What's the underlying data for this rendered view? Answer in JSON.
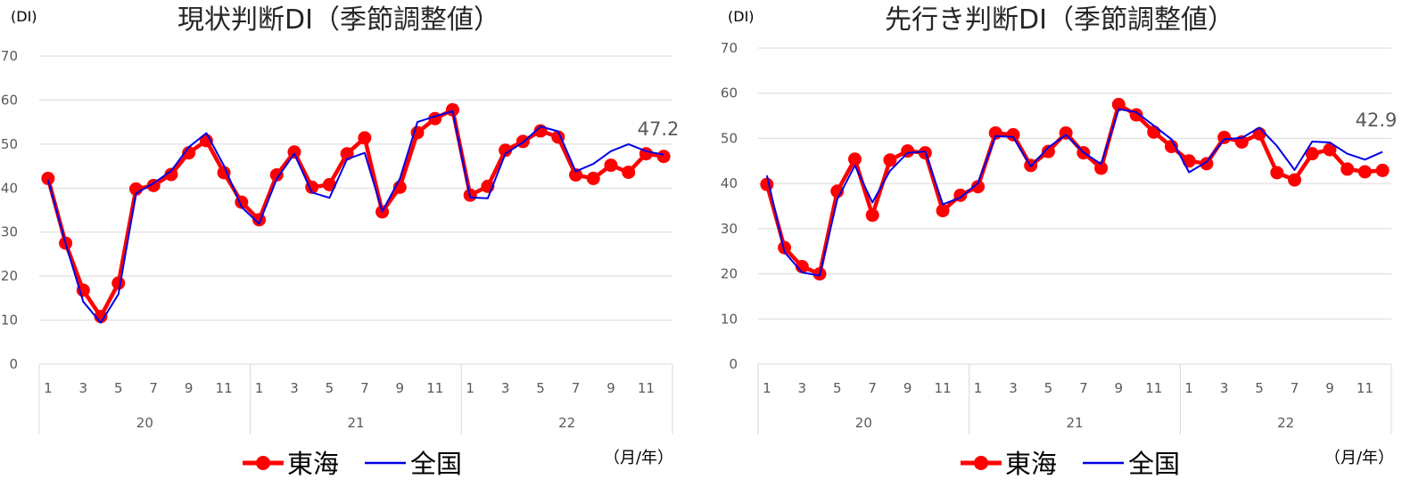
{
  "colors": {
    "tokai": "#ff0000",
    "national": "#0000e6",
    "grid": "#d9d9d9",
    "axis_text": "#595959",
    "title": "#262626"
  },
  "chart_data": [
    {
      "type": "line",
      "title": "現状判断DI（季節調整値）",
      "ylabel": "(DI)",
      "xlabel": "（月/年）",
      "ylim": [
        0,
        70
      ],
      "yticks": [
        "0",
        "10",
        "20",
        "30",
        "40",
        "50",
        "60",
        "70"
      ],
      "years": [
        "20",
        "21",
        "22"
      ],
      "month_ticks": [
        "1",
        "3",
        "5",
        "7",
        "9",
        "11"
      ],
      "end_label": "47.2",
      "grid": true,
      "legend_position": "bottom",
      "series": [
        {
          "name": "東海",
          "values": [
            42.2,
            27.5,
            16.8,
            10.8,
            18.4,
            39.8,
            40.6,
            43.1,
            48.0,
            50.8,
            43.5,
            36.8,
            32.8,
            43.0,
            48.2,
            40.2,
            40.8,
            47.8,
            51.4,
            34.6,
            40.2,
            52.6,
            55.8,
            57.8,
            38.4,
            40.4,
            48.6,
            50.6,
            53.0,
            51.6,
            43.0,
            42.2,
            45.2,
            43.6,
            47.8,
            47.2
          ]
        },
        {
          "name": "全国",
          "values": [
            41.9,
            27.4,
            14.2,
            9.4,
            15.9,
            38.8,
            41.1,
            43.9,
            49.3,
            52.5,
            45.1,
            35.7,
            31.9,
            42.1,
            47.8,
            39.0,
            37.8,
            46.6,
            48.0,
            34.7,
            42.1,
            55.0,
            56.3,
            57.5,
            37.9,
            37.7,
            47.8,
            50.4,
            54.0,
            52.9,
            43.8,
            45.5,
            48.4,
            50.0,
            48.4,
            47.6
          ]
        }
      ]
    },
    {
      "type": "line",
      "title": "先行き判断DI（季節調整値）",
      "ylabel": "(DI)",
      "xlabel": "（月/年）",
      "ylim": [
        0,
        70
      ],
      "yticks": [
        "0",
        "10",
        "20",
        "30",
        "40",
        "50",
        "60",
        "70"
      ],
      "years": [
        "20",
        "21",
        "22"
      ],
      "month_ticks": [
        "1",
        "3",
        "5",
        "7",
        "9",
        "11"
      ],
      "end_label": "42.9",
      "grid": true,
      "legend_position": "bottom",
      "series": [
        {
          "name": "東海",
          "values": [
            39.8,
            25.8,
            21.6,
            20.0,
            38.3,
            45.4,
            33.0,
            45.2,
            47.2,
            46.8,
            34.0,
            37.4,
            39.3,
            51.2,
            50.8,
            44.0,
            47.1,
            51.2,
            46.8,
            43.4,
            57.5,
            55.2,
            51.4,
            48.2,
            45.0,
            44.4,
            50.2,
            49.2,
            51.0,
            42.4,
            40.8,
            46.6,
            47.5,
            43.2,
            42.6,
            42.9
          ]
        },
        {
          "name": "全国",
          "values": [
            41.8,
            24.8,
            20.3,
            19.6,
            36.5,
            44.0,
            35.8,
            42.8,
            46.8,
            47.1,
            35.4,
            36.9,
            40.1,
            50.5,
            50.3,
            43.8,
            48.0,
            50.8,
            46.9,
            44.3,
            56.5,
            55.8,
            52.8,
            49.8,
            42.5,
            44.8,
            49.8,
            50.1,
            52.4,
            48.3,
            43.0,
            49.3,
            49.1,
            46.6,
            45.3,
            47.0
          ]
        }
      ]
    }
  ]
}
